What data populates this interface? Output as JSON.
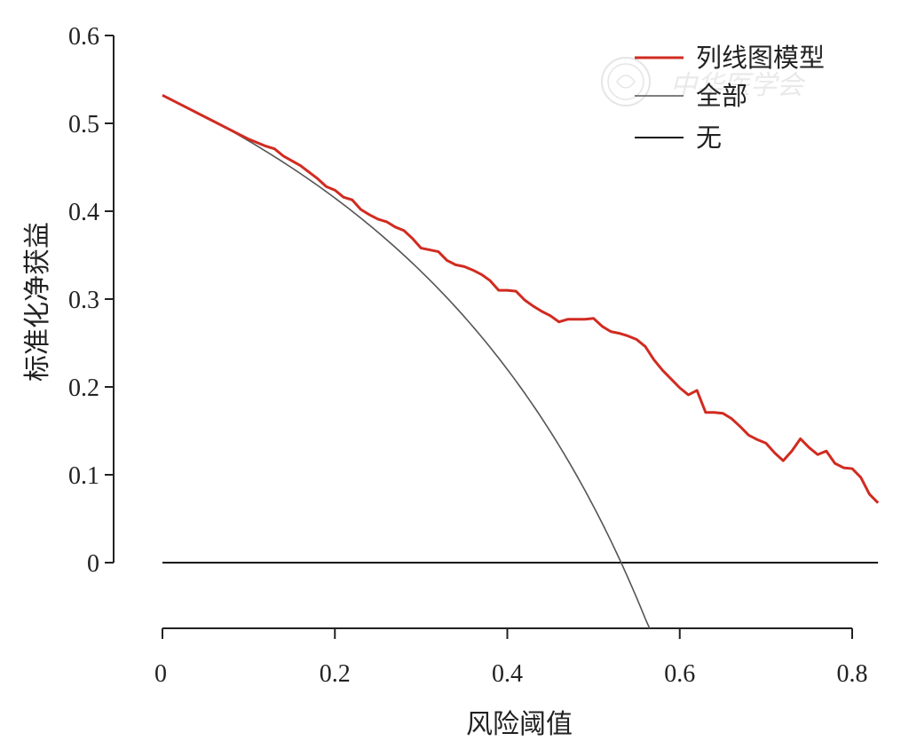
{
  "chart_data": {
    "type": "line",
    "xlabel": "风险阈值",
    "ylabel": "标准化净获益",
    "xlim": [
      0,
      0.83
    ],
    "ylim": [
      -0.075,
      0.6
    ],
    "x_ticks": [
      0,
      0.2,
      0.4,
      0.6,
      0.8
    ],
    "x_tick_labels": [
      "0",
      "0.2",
      "0.4",
      "0.6",
      "0.8"
    ],
    "y_ticks": [
      0,
      0.1,
      0.2,
      0.3,
      0.4,
      0.5,
      0.6
    ],
    "y_tick_labels": [
      "0",
      "0.1",
      "0.2",
      "0.3",
      "0.4",
      "0.5",
      "0.6"
    ],
    "grid": false,
    "legend_position": "top-right",
    "series": [
      {
        "name": "列线图模型",
        "color": "#d12b21",
        "x": [
          0,
          0.02,
          0.04,
          0.06,
          0.08,
          0.1,
          0.12,
          0.13,
          0.14,
          0.16,
          0.18,
          0.19,
          0.2,
          0.21,
          0.22,
          0.23,
          0.24,
          0.25,
          0.26,
          0.27,
          0.28,
          0.29,
          0.3,
          0.31,
          0.32,
          0.33,
          0.34,
          0.35,
          0.36,
          0.37,
          0.38,
          0.39,
          0.4,
          0.41,
          0.42,
          0.43,
          0.44,
          0.45,
          0.46,
          0.47,
          0.48,
          0.49,
          0.5,
          0.51,
          0.52,
          0.53,
          0.54,
          0.55,
          0.56,
          0.57,
          0.58,
          0.59,
          0.6,
          0.61,
          0.62,
          0.63,
          0.64,
          0.65,
          0.66,
          0.67,
          0.68,
          0.69,
          0.7,
          0.71,
          0.72,
          0.73,
          0.74,
          0.75,
          0.76,
          0.77,
          0.78,
          0.79,
          0.8,
          0.81,
          0.82,
          0.83
        ],
        "y": [
          0.532,
          0.522,
          0.512,
          0.502,
          0.492,
          0.482,
          0.474,
          0.471,
          0.463,
          0.452,
          0.437,
          0.428,
          0.424,
          0.416,
          0.413,
          0.402,
          0.396,
          0.391,
          0.388,
          0.382,
          0.378,
          0.369,
          0.358,
          0.356,
          0.354,
          0.344,
          0.339,
          0.337,
          0.333,
          0.328,
          0.321,
          0.31,
          0.31,
          0.309,
          0.299,
          0.292,
          0.286,
          0.281,
          0.274,
          0.277,
          0.277,
          0.277,
          0.278,
          0.269,
          0.263,
          0.261,
          0.258,
          0.254,
          0.246,
          0.231,
          0.219,
          0.209,
          0.199,
          0.191,
          0.196,
          0.171,
          0.171,
          0.17,
          0.164,
          0.155,
          0.145,
          0.14,
          0.136,
          0.125,
          0.116,
          0.127,
          0.141,
          0.131,
          0.123,
          0.127,
          0.113,
          0.108,
          0.107,
          0.097,
          0.078,
          0.068
        ]
      },
      {
        "name": "全部",
        "color": "#555555",
        "prevalence": 0.532,
        "x_range": [
          0,
          0.565
        ]
      },
      {
        "name": "无",
        "color": "#111111",
        "y_constant": 0
      }
    ]
  },
  "watermark": "中华医学会"
}
